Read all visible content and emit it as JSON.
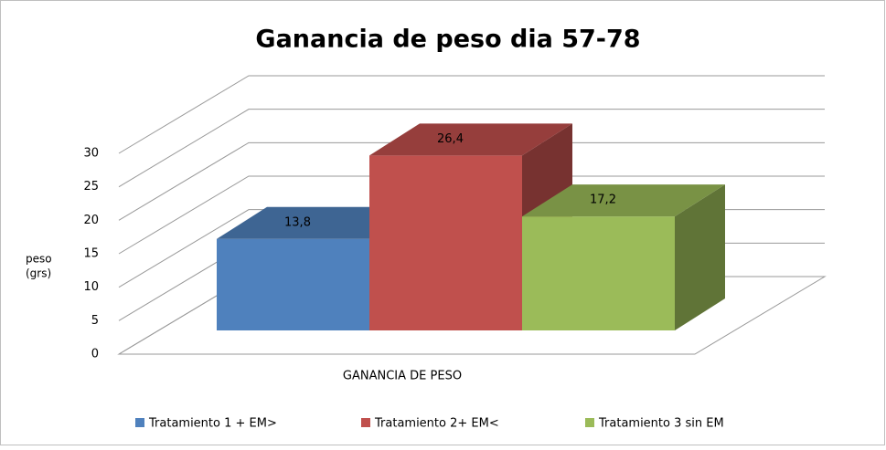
{
  "chart_data": {
    "type": "bar3d",
    "title": "Ganancia de peso dia 57-78",
    "ylabel": [
      "peso",
      "(grs)"
    ],
    "categories": [
      "GANANCIA DE PESO"
    ],
    "series": [
      {
        "name": "Tratamiento 1 + EM>",
        "color": "#4f81bd",
        "values": [
          13.8
        ],
        "value_labels": [
          "13,8"
        ]
      },
      {
        "name": "Tratamiento 2+ EM<",
        "color": "#c0504d",
        "values": [
          26.4
        ],
        "value_labels": [
          "26,4"
        ]
      },
      {
        "name": "Tratamiento 3 sin EM",
        "color": "#9bbb59",
        "values": [
          17.2
        ],
        "value_labels": [
          "17,2"
        ]
      }
    ],
    "ylim": [
      0,
      30
    ],
    "yticks": [
      0,
      5,
      10,
      15,
      20,
      25,
      30
    ],
    "grid": true,
    "legend": "bottom"
  }
}
